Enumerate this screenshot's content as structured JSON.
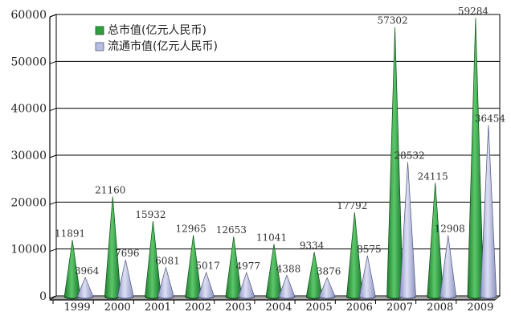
{
  "chart_data": {
    "type": "bar",
    "title": "",
    "xlabel": "",
    "ylabel": "",
    "ylim": [
      0,
      60000
    ],
    "yticks": [
      "0",
      "10000",
      "20000",
      "30000",
      "40000",
      "50000",
      "60000"
    ],
    "grid": true,
    "legend_position": "top-left",
    "categories": [
      "1999",
      "2000",
      "2001",
      "2002",
      "2003",
      "2004",
      "2005",
      "2006",
      "2007",
      "2008",
      "2009"
    ],
    "series": [
      {
        "name": "总市值(亿元人民币)",
        "color": "#2e9e3e",
        "values": [
          11891,
          21160,
          15932,
          12965,
          12653,
          11041,
          9334,
          17792,
          57302,
          24115,
          59284
        ],
        "labels": [
          "11891",
          "21160",
          "15932",
          "12965",
          "12653",
          "11041",
          "9334",
          "17792",
          "57302",
          "24115",
          "59284"
        ]
      },
      {
        "name": "流通市值(亿元人民币)",
        "color": "#b7bde0",
        "values": [
          3964,
          7696,
          6081,
          5017,
          4977,
          4388,
          3876,
          8575,
          28532,
          12908,
          36454
        ],
        "labels": [
          "3964",
          "7696",
          "6081",
          "5017",
          "4977",
          "4388",
          "3876",
          "8575",
          "28532",
          "12908",
          "36454"
        ]
      }
    ]
  }
}
